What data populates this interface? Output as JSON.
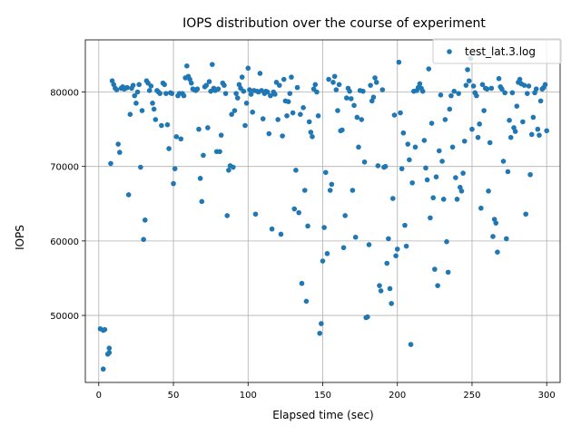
{
  "chart_data": {
    "type": "scatter",
    "title": "IOPS distribution over the course of experiment",
    "xlabel": "Elapsed time (sec)",
    "ylabel": "IOPS",
    "xlim": [
      -9,
      309
    ],
    "ylim": [
      41000,
      87000
    ],
    "xticks": [
      0,
      50,
      100,
      150,
      200,
      250,
      300
    ],
    "yticks": [
      50000,
      60000,
      70000,
      80000
    ],
    "grid": true,
    "legend_position": "top-right",
    "series": [
      {
        "name": "test_lat.3.log",
        "color": "#1f77b4",
        "points": [
          [
            1,
            48200
          ],
          [
            3,
            42800
          ],
          [
            3,
            48000
          ],
          [
            4,
            48100
          ],
          [
            6,
            44800
          ],
          [
            7,
            45000
          ],
          [
            7,
            45600
          ],
          [
            8,
            70400
          ],
          [
            9,
            81500
          ],
          [
            10,
            81000
          ],
          [
            11,
            80500
          ],
          [
            12,
            80300
          ],
          [
            13,
            73000
          ],
          [
            14,
            71900
          ],
          [
            15,
            80500
          ],
          [
            16,
            80700
          ],
          [
            17,
            80400
          ],
          [
            18,
            80500
          ],
          [
            19,
            80600
          ],
          [
            20,
            66200
          ],
          [
            21,
            77000
          ],
          [
            22,
            80500
          ],
          [
            23,
            80900
          ],
          [
            24,
            79500
          ],
          [
            25,
            78500
          ],
          [
            26,
            80000
          ],
          [
            27,
            81000
          ],
          [
            28,
            69900
          ],
          [
            29,
            77500
          ],
          [
            30,
            60200
          ],
          [
            31,
            62800
          ],
          [
            32,
            81500
          ],
          [
            33,
            81200
          ],
          [
            34,
            80200
          ],
          [
            35,
            80800
          ],
          [
            36,
            78500
          ],
          [
            37,
            77700
          ],
          [
            38,
            76300
          ],
          [
            39,
            80200
          ],
          [
            40,
            80000
          ],
          [
            41,
            79800
          ],
          [
            42,
            75500
          ],
          [
            43,
            81200
          ],
          [
            44,
            81000
          ],
          [
            45,
            79800
          ],
          [
            46,
            75600
          ],
          [
            47,
            72400
          ],
          [
            48,
            79900
          ],
          [
            49,
            79800
          ],
          [
            50,
            67700
          ],
          [
            51,
            69700
          ],
          [
            52,
            74000
          ],
          [
            53,
            79500
          ],
          [
            54,
            79800
          ],
          [
            55,
            73700
          ],
          [
            56,
            79800
          ],
          [
            57,
            79500
          ],
          [
            58,
            81900
          ],
          [
            59,
            83500
          ],
          [
            60,
            82100
          ],
          [
            61,
            81700
          ],
          [
            62,
            81200
          ],
          [
            63,
            80400
          ],
          [
            64,
            80300
          ],
          [
            65,
            80200
          ],
          [
            66,
            80400
          ],
          [
            67,
            75000
          ],
          [
            68,
            68400
          ],
          [
            69,
            65300
          ],
          [
            70,
            71500
          ],
          [
            71,
            80700
          ],
          [
            72,
            80900
          ],
          [
            73,
            75200
          ],
          [
            74,
            81400
          ],
          [
            75,
            80100
          ],
          [
            76,
            83700
          ],
          [
            77,
            80500
          ],
          [
            78,
            80200
          ],
          [
            79,
            72000
          ],
          [
            80,
            80400
          ],
          [
            81,
            72000
          ],
          [
            82,
            74200
          ],
          [
            83,
            81200
          ],
          [
            84,
            80900
          ],
          [
            85,
            79800
          ],
          [
            86,
            63400
          ],
          [
            87,
            69500
          ],
          [
            88,
            70100
          ],
          [
            89,
            77000
          ],
          [
            90,
            69900
          ],
          [
            91,
            77500
          ],
          [
            92,
            79800
          ],
          [
            93,
            79200
          ],
          [
            94,
            81000
          ],
          [
            95,
            80500
          ],
          [
            96,
            82000
          ],
          [
            97,
            80100
          ],
          [
            98,
            75500
          ],
          [
            99,
            78500
          ],
          [
            100,
            83200
          ],
          [
            101,
            80300
          ],
          [
            102,
            79700
          ],
          [
            103,
            77300
          ],
          [
            104,
            80200
          ],
          [
            105,
            63600
          ],
          [
            106,
            80100
          ],
          [
            107,
            80000
          ],
          [
            108,
            82500
          ],
          [
            109,
            80200
          ],
          [
            110,
            76400
          ],
          [
            111,
            79800
          ],
          [
            112,
            80100
          ],
          [
            113,
            80000
          ],
          [
            114,
            74400
          ],
          [
            115,
            79500
          ],
          [
            116,
            61600
          ],
          [
            117,
            80000
          ],
          [
            118,
            79700
          ],
          [
            119,
            81300
          ],
          [
            120,
            76300
          ],
          [
            121,
            80900
          ],
          [
            122,
            60900
          ],
          [
            123,
            74100
          ],
          [
            124,
            81700
          ],
          [
            125,
            78800
          ],
          [
            126,
            76800
          ],
          [
            127,
            78700
          ],
          [
            128,
            79800
          ],
          [
            129,
            82000
          ],
          [
            130,
            77200
          ],
          [
            131,
            64300
          ],
          [
            132,
            69500
          ],
          [
            133,
            80600
          ],
          [
            134,
            63800
          ],
          [
            135,
            77000
          ],
          [
            136,
            54300
          ],
          [
            137,
            77900
          ],
          [
            138,
            66800
          ],
          [
            139,
            51900
          ],
          [
            140,
            62000
          ],
          [
            141,
            76000
          ],
          [
            142,
            74600
          ],
          [
            143,
            74000
          ],
          [
            144,
            80400
          ],
          [
            145,
            81000
          ],
          [
            146,
            80000
          ],
          [
            147,
            76800
          ],
          [
            148,
            47600
          ],
          [
            149,
            48900
          ],
          [
            150,
            57300
          ],
          [
            151,
            61800
          ],
          [
            152,
            69200
          ],
          [
            153,
            58300
          ],
          [
            154,
            81700
          ],
          [
            155,
            66800
          ],
          [
            156,
            67600
          ],
          [
            157,
            81300
          ],
          [
            158,
            82100
          ],
          [
            159,
            80300
          ],
          [
            160,
            77500
          ],
          [
            161,
            81000
          ],
          [
            162,
            74800
          ],
          [
            163,
            74900
          ],
          [
            164,
            59100
          ],
          [
            165,
            63400
          ],
          [
            166,
            79200
          ],
          [
            167,
            80500
          ],
          [
            168,
            80100
          ],
          [
            169,
            79100
          ],
          [
            170,
            66800
          ],
          [
            171,
            78200
          ],
          [
            172,
            60500
          ],
          [
            173,
            76600
          ],
          [
            174,
            72600
          ],
          [
            175,
            80200
          ],
          [
            176,
            76300
          ],
          [
            177,
            80100
          ],
          [
            178,
            70600
          ],
          [
            179,
            49700
          ],
          [
            180,
            49800
          ],
          [
            181,
            59500
          ],
          [
            182,
            80900
          ],
          [
            183,
            78800
          ],
          [
            184,
            79300
          ],
          [
            185,
            81900
          ],
          [
            186,
            81300
          ],
          [
            187,
            70100
          ],
          [
            188,
            54000
          ],
          [
            189,
            53300
          ],
          [
            190,
            80300
          ],
          [
            191,
            69900
          ],
          [
            192,
            70000
          ],
          [
            193,
            57000
          ],
          [
            194,
            60300
          ],
          [
            195,
            53600
          ],
          [
            196,
            51600
          ],
          [
            197,
            65700
          ],
          [
            198,
            76900
          ],
          [
            199,
            58000
          ],
          [
            200,
            58900
          ],
          [
            201,
            84000
          ],
          [
            202,
            77200
          ],
          [
            203,
            69700
          ],
          [
            204,
            74500
          ],
          [
            205,
            62100
          ],
          [
            206,
            59300
          ],
          [
            207,
            73000
          ],
          [
            208,
            70900
          ],
          [
            209,
            46100
          ],
          [
            210,
            67800
          ],
          [
            211,
            80100
          ],
          [
            212,
            72600
          ],
          [
            213,
            80200
          ],
          [
            214,
            80600
          ],
          [
            215,
            81100
          ],
          [
            216,
            80500
          ],
          [
            217,
            80100
          ],
          [
            218,
            73500
          ],
          [
            219,
            69800
          ],
          [
            220,
            68200
          ],
          [
            221,
            83100
          ],
          [
            222,
            63100
          ],
          [
            223,
            75800
          ],
          [
            224,
            65800
          ],
          [
            225,
            56200
          ],
          [
            226,
            68600
          ],
          [
            227,
            54000
          ],
          [
            228,
            72100
          ],
          [
            229,
            79600
          ],
          [
            230,
            70700
          ],
          [
            231,
            65600
          ],
          [
            232,
            76300
          ],
          [
            233,
            59900
          ],
          [
            234,
            55800
          ],
          [
            235,
            77700
          ],
          [
            236,
            79500
          ],
          [
            237,
            72600
          ],
          [
            238,
            80100
          ],
          [
            239,
            68500
          ],
          [
            240,
            65600
          ],
          [
            241,
            79800
          ],
          [
            242,
            67200
          ],
          [
            243,
            66700
          ],
          [
            244,
            69100
          ],
          [
            245,
            73400
          ],
          [
            246,
            80900
          ],
          [
            247,
            83000
          ],
          [
            248,
            81500
          ],
          [
            249,
            84500
          ],
          [
            250,
            75000
          ],
          [
            251,
            80800
          ],
          [
            252,
            79900
          ],
          [
            253,
            79500
          ],
          [
            254,
            73900
          ],
          [
            255,
            75700
          ],
          [
            256,
            64400
          ],
          [
            257,
            81000
          ],
          [
            258,
            77500
          ],
          [
            259,
            80500
          ],
          [
            260,
            80400
          ],
          [
            261,
            66700
          ],
          [
            262,
            73200
          ],
          [
            263,
            80500
          ],
          [
            264,
            60600
          ],
          [
            265,
            62900
          ],
          [
            266,
            62400
          ],
          [
            267,
            58500
          ],
          [
            268,
            81800
          ],
          [
            269,
            80700
          ],
          [
            270,
            80400
          ],
          [
            271,
            70700
          ],
          [
            272,
            79900
          ],
          [
            273,
            60300
          ],
          [
            274,
            69300
          ],
          [
            275,
            76200
          ],
          [
            276,
            73900
          ],
          [
            277,
            79900
          ],
          [
            278,
            75200
          ],
          [
            279,
            74700
          ],
          [
            280,
            78100
          ],
          [
            281,
            81300
          ],
          [
            282,
            81700
          ],
          [
            283,
            81100
          ],
          [
            284,
            76000
          ],
          [
            285,
            80900
          ],
          [
            286,
            63600
          ],
          [
            287,
            79800
          ],
          [
            288,
            80800
          ],
          [
            289,
            68900
          ],
          [
            290,
            74300
          ],
          [
            291,
            76600
          ],
          [
            292,
            79900
          ],
          [
            293,
            80400
          ],
          [
            294,
            75000
          ],
          [
            295,
            74200
          ],
          [
            296,
            78800
          ],
          [
            297,
            80400
          ],
          [
            298,
            80600
          ],
          [
            299,
            81000
          ],
          [
            300,
            74800
          ]
        ]
      }
    ]
  }
}
